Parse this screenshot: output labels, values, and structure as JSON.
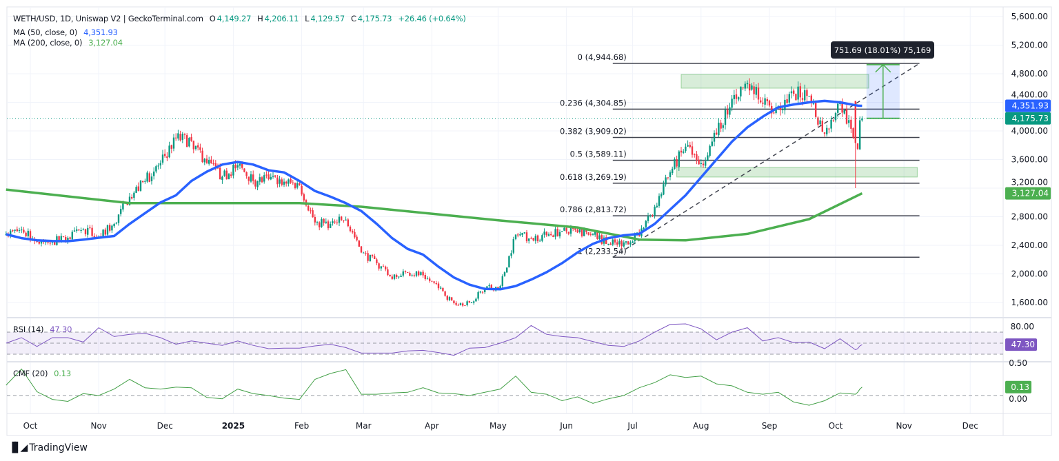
{
  "header": {
    "symbol": "WETH/USD, 1D, Uniswap V2 | GeckoTerminal.com",
    "open_label": "O",
    "open": "4,149.27",
    "high_label": "H",
    "high": "4,206.11",
    "low_label": "L",
    "low": "4,129.57",
    "close_label": "C",
    "close": "4,175.73",
    "change": "+26.46 (+0.64%)",
    "ma50_label": "MA (50, close, 0)",
    "ma50_value": "4,351.93",
    "ma200_label": "MA (200, close, 0)",
    "ma200_value": "3,127.04",
    "rsi_label": "RSI (14)",
    "rsi_value": "47.30",
    "cmf_label": "CMF (20)",
    "cmf_value": "0.13"
  },
  "brand": "TradingView",
  "colors": {
    "up": "#089981",
    "down": "#f23645",
    "ma50": "#2962ff",
    "ma200": "#4caf50",
    "rsi": "#7e57c2",
    "cmf": "#43a047"
  },
  "chart_data": {
    "type": "candlestick",
    "title": "WETH/USD, 1D, Uniswap V2",
    "ylim": [
      1400,
      5800
    ],
    "price_ticks": [
      "5,600.00",
      "5,200.00",
      "4,800.00",
      "4,400.00",
      "4,000.00",
      "3,600.00",
      "3,200.00",
      "2,800.00",
      "2,400.00",
      "2,000.00",
      "1,600.00"
    ],
    "price_tick_values": [
      5600,
      5200,
      4800,
      4400,
      4000,
      3600,
      3200,
      2800,
      2400,
      2000,
      1600
    ],
    "time_ticks": [
      {
        "label": "Oct",
        "date": "2024-10-01",
        "bold": false
      },
      {
        "label": "Nov",
        "date": "2024-11-01",
        "bold": false
      },
      {
        "label": "Dec",
        "date": "2024-12-01",
        "bold": false
      },
      {
        "label": "2025",
        "date": "2025-01-01",
        "bold": true
      },
      {
        "label": "Feb",
        "date": "2025-02-01",
        "bold": false
      },
      {
        "label": "Mar",
        "date": "2025-03-01",
        "bold": false
      },
      {
        "label": "Apr",
        "date": "2025-04-01",
        "bold": false
      },
      {
        "label": "May",
        "date": "2025-05-01",
        "bold": false
      },
      {
        "label": "Jun",
        "date": "2025-06-01",
        "bold": false
      },
      {
        "label": "Jul",
        "date": "2025-07-01",
        "bold": false
      },
      {
        "label": "Aug",
        "date": "2025-08-01",
        "bold": false
      },
      {
        "label": "Sep",
        "date": "2025-09-01",
        "bold": false
      },
      {
        "label": "Oct",
        "date": "2025-10-01",
        "bold": false
      },
      {
        "label": "Nov",
        "date": "2025-11-01",
        "bold": false
      },
      {
        "label": "Dec",
        "date": "2025-12-01",
        "bold": false
      }
    ],
    "dates": [
      "2024-09-20",
      "2024-09-27",
      "2024-10-04",
      "2024-10-11",
      "2024-10-18",
      "2024-10-25",
      "2024-11-01",
      "2024-11-08",
      "2024-11-15",
      "2024-11-22",
      "2024-11-29",
      "2024-12-06",
      "2024-12-13",
      "2024-12-20",
      "2024-12-27",
      "2025-01-03",
      "2025-01-10",
      "2025-01-17",
      "2025-01-24",
      "2025-01-31",
      "2025-02-07",
      "2025-02-14",
      "2025-02-21",
      "2025-02-28",
      "2025-03-07",
      "2025-03-14",
      "2025-03-21",
      "2025-03-28",
      "2025-04-04",
      "2025-04-11",
      "2025-04-18",
      "2025-04-25",
      "2025-05-02",
      "2025-05-09",
      "2025-05-16",
      "2025-05-23",
      "2025-05-30",
      "2025-06-06",
      "2025-06-13",
      "2025-06-20",
      "2025-06-27",
      "2025-07-04",
      "2025-07-11",
      "2025-07-18",
      "2025-07-25",
      "2025-08-01",
      "2025-08-08",
      "2025-08-15",
      "2025-08-22",
      "2025-08-29",
      "2025-09-05",
      "2025-09-12",
      "2025-09-19",
      "2025-09-26",
      "2025-10-03",
      "2025-10-10",
      "2025-10-11",
      "2025-10-12",
      "2025-10-13"
    ],
    "close": [
      2554,
      2620,
      2450,
      2450,
      2506,
      2620,
      2520,
      2700,
      3080,
      3300,
      3550,
      3900,
      3860,
      3550,
      3360,
      3520,
      3300,
      3325,
      3290,
      3240,
      2720,
      2700,
      2760,
      2300,
      2150,
      1930,
      2020,
      1980,
      1800,
      1590,
      1600,
      1790,
      1830,
      2550,
      2500,
      2540,
      2600,
      2580,
      2554,
      2420,
      2440,
      2530,
      2940,
      3420,
      3780,
      3550,
      3950,
      4450,
      4670,
      4380,
      4330,
      4520,
      4490,
      3960,
      4400,
      3830,
      3750,
      4149.27,
      4175.73
    ],
    "ma50": [
      2554,
      2500,
      2470,
      2460,
      2458,
      2480,
      2506,
      2530,
      2700,
      2850,
      3000,
      3100,
      3300,
      3430,
      3530,
      3566,
      3530,
      3450,
      3420,
      3300,
      3160,
      3080,
      2990,
      2880,
      2700,
      2500,
      2350,
      2270,
      2100,
      1950,
      1850,
      1790,
      1785,
      1830,
      1920,
      2024,
      2150,
      2300,
      2420,
      2500,
      2540,
      2560,
      2700,
      2900,
      3100,
      3350,
      3600,
      3850,
      4050,
      4200,
      4330,
      4370,
      4400,
      4420,
      4400,
      4360,
      4355,
      4352,
      4351.93
    ],
    "rsi": [
      50,
      60,
      44,
      60,
      60,
      52,
      78,
      62,
      66,
      68,
      60,
      48,
      54,
      50,
      46,
      54,
      46,
      40,
      41,
      41,
      45,
      48,
      42,
      32,
      32,
      32,
      36,
      37,
      33,
      28,
      41,
      42,
      50,
      60,
      82,
      66,
      62,
      60,
      53,
      46,
      44,
      54,
      70,
      84,
      85,
      76,
      56,
      70,
      78,
      54,
      60,
      51,
      52,
      40,
      58,
      38,
      40,
      45,
      47.3
    ],
    "cmf": [
      0.16,
      0.41,
      0.06,
      -0.06,
      -0.09,
      0.03,
      0.0,
      0.1,
      0.25,
      0.12,
      0.1,
      0.13,
      0.12,
      -0.03,
      -0.05,
      0.1,
      0.03,
      0.0,
      -0.04,
      -0.06,
      0.25,
      0.34,
      0.4,
      0.02,
      0.02,
      0.04,
      0.05,
      0.12,
      0.04,
      0.03,
      0.0,
      0.05,
      0.1,
      0.3,
      0.05,
      0.02,
      -0.08,
      -0.02,
      -0.12,
      -0.05,
      0.0,
      0.12,
      0.2,
      0.32,
      0.28,
      0.3,
      0.18,
      0.15,
      0.05,
      0.02,
      0.05,
      -0.1,
      -0.15,
      -0.08,
      0.04,
      0.02,
      0.05,
      0.1,
      0.13
    ],
    "ma200": {
      "dates": [
        "2024-09-20",
        "2024-11-15",
        "2025-01-31",
        "2025-02-28",
        "2025-05-02",
        "2025-06-06",
        "2025-07-04",
        "2025-07-25",
        "2025-08-22",
        "2025-09-19",
        "2025-10-13"
      ],
      "values": [
        3180,
        2990,
        2990,
        2940,
        2747,
        2650,
        2480,
        2470,
        2560,
        2766,
        3127.04
      ]
    },
    "last_candle": {
      "date": "2025-10-13",
      "open": 4149.27,
      "high": 4206.11,
      "low": 4129.57,
      "close": 4175.73
    },
    "wick_low": {
      "date": "2025-10-10",
      "low": 3200
    },
    "last_price": 4175.73,
    "badges": [
      {
        "label": "4,351.93",
        "value": 4351.93,
        "color": "#2962ff"
      },
      {
        "label": "4,175.73",
        "value": 4175.73,
        "color": "#089981"
      },
      {
        "label": "3,127.04",
        "value": 3127.04,
        "color": "#4caf50"
      }
    ],
    "rsi_panel": {
      "ticks": [
        "80.00"
      ],
      "tick_values": [
        80
      ],
      "bands": [
        70,
        50,
        30
      ],
      "badge": "47.30",
      "badge_color": "#7e57c2"
    },
    "cmf_panel": {
      "ticks": [
        "0.50",
        "0.00"
      ],
      "tick_values": [
        0.5,
        0
      ],
      "badge": "0.13",
      "badge_color": "#4caf50"
    },
    "drawings": {
      "fib": {
        "start_date": "2025-06-22",
        "end_date": "2025-11-08",
        "levels": [
          {
            "label": "0 (4,944.68)",
            "value": 4944.68
          },
          {
            "label": "0.236 (4,304.85)",
            "value": 4304.85
          },
          {
            "label": "0.382 (3,909.02)",
            "value": 3909.02
          },
          {
            "label": "0.5 (3,589.11)",
            "value": 3589.11
          },
          {
            "label": "0.618 (3,269.19)",
            "value": 3269.19
          },
          {
            "label": "0.786 (2,813.72)",
            "value": 2813.72
          },
          {
            "label": "1 (2,233.54)",
            "value": 2233.54
          }
        ]
      },
      "zones": [
        {
          "from": "2025-07-23",
          "to": "2025-10-16",
          "top": 4790,
          "bottom": 4598
        },
        {
          "from": "2025-07-21",
          "to": "2025-11-07",
          "top": 3490,
          "bottom": 3355
        }
      ],
      "measure": {
        "from": "2025-10-15",
        "to": "2025-10-30",
        "start": 4175.73,
        "end": 4927.42,
        "label": "751.69 (18.01%) 75,169"
      }
    }
  }
}
